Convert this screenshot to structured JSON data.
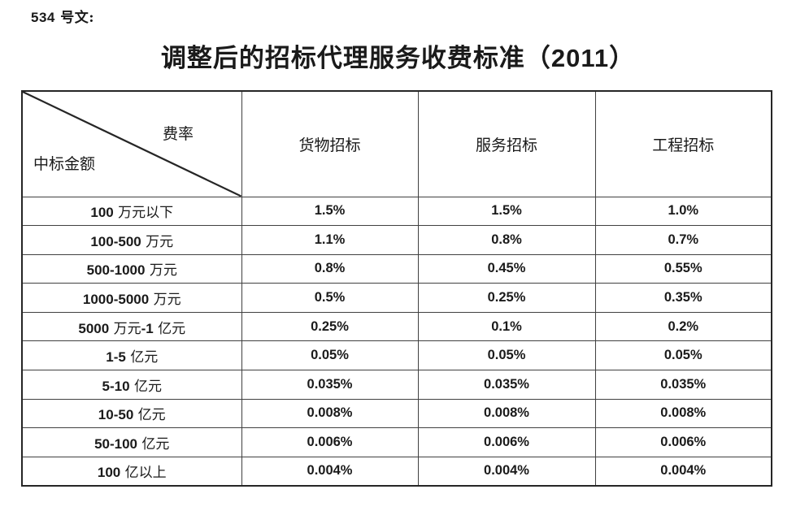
{
  "page": {
    "doc_number": "534 号文:",
    "title": "调整后的招标代理服务收费标准（2011）"
  },
  "table": {
    "corner": {
      "top_right": "费率",
      "bottom_left": "中标金额"
    },
    "columns": [
      "货物招标",
      "服务招标",
      "工程招标"
    ],
    "rows": [
      {
        "label": "100 万元以下",
        "values": [
          "1.5%",
          "1.5%",
          "1.0%"
        ]
      },
      {
        "label": "100-500 万元",
        "values": [
          "1.1%",
          "0.8%",
          "0.7%"
        ]
      },
      {
        "label": "500-1000 万元",
        "values": [
          "0.8%",
          "0.45%",
          "0.55%"
        ]
      },
      {
        "label": "1000-5000 万元",
        "values": [
          "0.5%",
          "0.25%",
          "0.35%"
        ]
      },
      {
        "label": "5000 万元-1 亿元",
        "values": [
          "0.25%",
          "0.1%",
          "0.2%"
        ]
      },
      {
        "label": "1-5 亿元",
        "values": [
          "0.05%",
          "0.05%",
          "0.05%"
        ]
      },
      {
        "label": "5-10 亿元",
        "values": [
          "0.035%",
          "0.035%",
          "0.035%"
        ]
      },
      {
        "label": "10-50 亿元",
        "values": [
          "0.008%",
          "0.008%",
          "0.008%"
        ]
      },
      {
        "label": "50-100 亿元",
        "values": [
          "0.006%",
          "0.006%",
          "0.006%"
        ]
      },
      {
        "label": "100 亿以上",
        "values": [
          "0.004%",
          "0.004%",
          "0.004%"
        ]
      }
    ]
  },
  "colors": {
    "text": "#1a1a1a",
    "border_inner": "#404040",
    "border_outer": "#262626",
    "background": "#ffffff"
  }
}
